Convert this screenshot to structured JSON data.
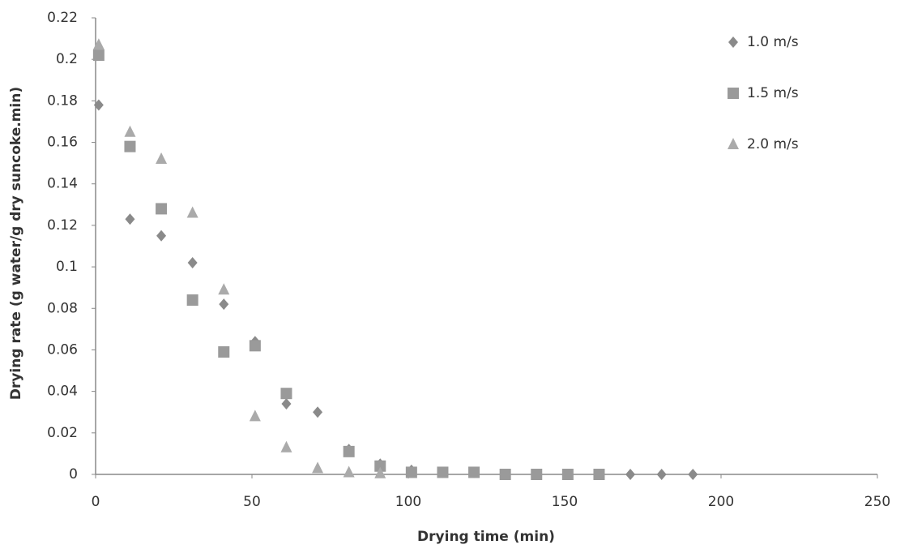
{
  "chart_data": {
    "type": "scatter",
    "x_label": "Drying  time (min)",
    "y_label": "Drying rate (g water/g dry suncoke.min)",
    "xlim": [
      0,
      250
    ],
    "xticks": [
      0,
      50,
      100,
      150,
      200,
      250
    ],
    "ylim": [
      0,
      0.22
    ],
    "yticks": [
      0,
      0.02,
      0.04,
      0.06,
      0.08,
      0.1,
      0.12,
      0.14,
      0.16,
      0.18,
      0.2,
      0.22
    ],
    "grid": false,
    "legend": "upper right",
    "series": [
      {
        "name": "1.0 m/s",
        "color": "#8a8a8a",
        "marker": "diamond",
        "x": [
          1,
          11,
          21,
          31,
          41,
          51,
          61,
          71,
          81,
          91,
          101,
          111,
          121,
          131,
          141,
          151,
          161,
          171,
          181,
          191
        ],
        "values": [
          0.178,
          0.123,
          0.115,
          0.102,
          0.082,
          0.064,
          0.034,
          0.03,
          0.012,
          0.005,
          0.002,
          0.001,
          0.001,
          0,
          0,
          0,
          0,
          0,
          0,
          0
        ]
      },
      {
        "name": "1.5 m/s",
        "color": "#9a9a9a",
        "marker": "square",
        "x": [
          1,
          11,
          21,
          31,
          41,
          51,
          61,
          81,
          91,
          101,
          111,
          121,
          131,
          141,
          151,
          161
        ],
        "values": [
          0.202,
          0.158,
          0.128,
          0.084,
          0.059,
          0.062,
          0.039,
          0.011,
          0.004,
          0.001,
          0.001,
          0.001,
          0,
          0,
          0,
          0
        ]
      },
      {
        "name": "2.0 m/s",
        "color": "#aaaaaa",
        "marker": "triangle",
        "x": [
          1,
          11,
          21,
          31,
          41,
          51,
          61,
          71,
          81,
          91
        ],
        "values": [
          0.207,
          0.165,
          0.152,
          0.126,
          0.089,
          0.028,
          0.013,
          0.003,
          0.001,
          0.0005
        ]
      }
    ]
  }
}
